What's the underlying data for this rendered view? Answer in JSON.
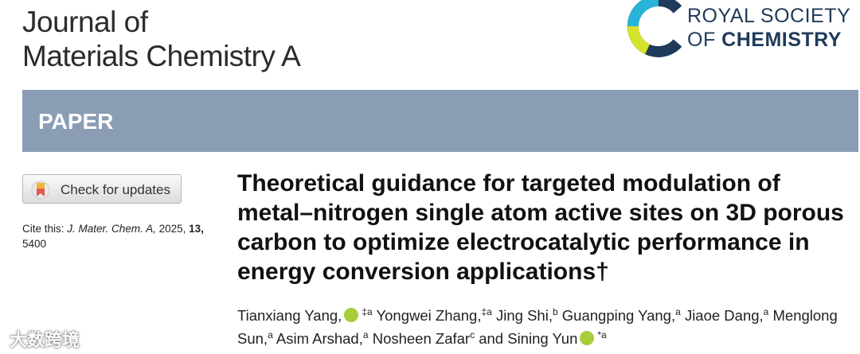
{
  "journal": {
    "lines": [
      "Journal of",
      "Materials Chemistry A"
    ]
  },
  "publisher": {
    "line1": "ROYAL SOCIETY",
    "line2_light": "OF",
    "line2_bold": "CHEMISTRY"
  },
  "section": "PAPER",
  "update_button": "Check for updates",
  "citation": {
    "label": "Cite this:",
    "journal": "J. Mater. Chem. A,",
    "year": "2025,",
    "volume": "13,",
    "page": "5400"
  },
  "title": "Theoretical guidance for targeted modulation of metal–nitrogen single atom active sites on 3D porous carbon to optimize electrocatalytic performance in energy conversion applications†",
  "byline": {
    "conjunction": "and",
    "conjunction_before": 8,
    "authors": [
      {
        "name": "Tianxiang Yang,",
        "orcid": true,
        "sup": "‡a"
      },
      {
        "name": "Yongwei Zhang,",
        "orcid": false,
        "sup": "‡a"
      },
      {
        "name": "Jing Shi,",
        "orcid": false,
        "sup": "b"
      },
      {
        "name": "Guangping Yang,",
        "orcid": false,
        "sup": "a"
      },
      {
        "name": "Jiaoe Dang,",
        "orcid": false,
        "sup": "a"
      },
      {
        "name": "Menglong Sun,",
        "orcid": false,
        "sup": "a"
      },
      {
        "name": "Asim Arshad,",
        "orcid": false,
        "sup": "a"
      },
      {
        "name": "Nosheen Zafar",
        "orcid": false,
        "sup": "c"
      },
      {
        "name": "Sining Yun",
        "orcid": true,
        "sup": "*a"
      }
    ]
  },
  "watermark": "大数跨境"
}
